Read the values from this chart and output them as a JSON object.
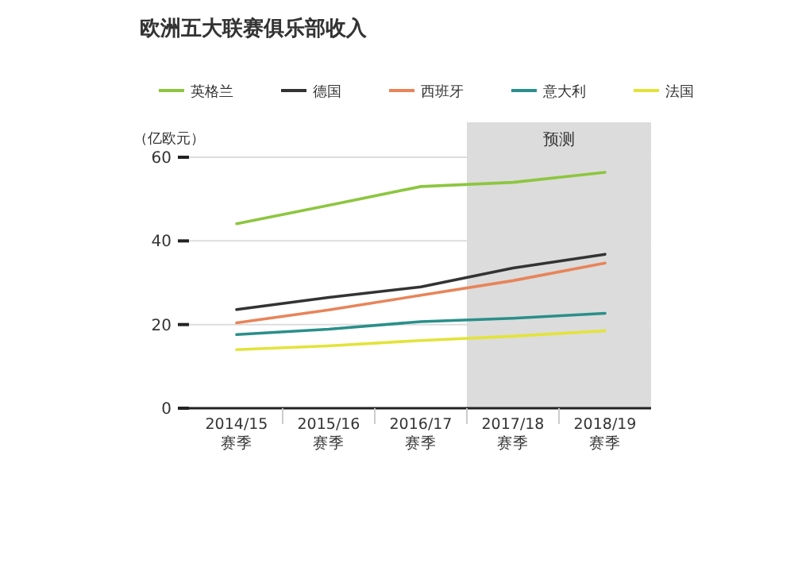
{
  "chart_data": {
    "type": "line",
    "title": "欧洲五大联赛俱乐部收入",
    "ylabel": "（亿欧元）",
    "categories": [
      "2014/15\n赛季",
      "2015/16\n赛季",
      "2016/17\n赛季",
      "2017/18\n赛季",
      "2018/19\n赛季"
    ],
    "series": [
      {
        "name": "英格兰",
        "color": "#8dc63f",
        "values": [
          44.1,
          48.5,
          53,
          54,
          56.4
        ]
      },
      {
        "name": "德国",
        "color": "#333333",
        "values": [
          23.6,
          26.5,
          29,
          33.5,
          36.8
        ]
      },
      {
        "name": "西班牙",
        "color": "#e8845a",
        "values": [
          20.4,
          23.5,
          27,
          30.5,
          34.7
        ]
      },
      {
        "name": "意大利",
        "color": "#2a8f8a",
        "values": [
          17.6,
          18.9,
          20.7,
          21.5,
          22.7
        ]
      },
      {
        "name": "法国",
        "color": "#e3e33a",
        "values": [
          14,
          14.9,
          16.2,
          17.2,
          18.5
        ]
      }
    ],
    "ylim": [
      0,
      60
    ],
    "yticks": [
      0,
      20,
      40,
      60
    ],
    "grid": "y",
    "legend": "top",
    "marker": "none",
    "line_style": "solid",
    "bands": [
      {
        "axis": "x",
        "from": "2017/18\n赛季",
        "to": "2018/19\n赛季",
        "label": "预测",
        "color": "#dcdcdc"
      }
    ]
  }
}
